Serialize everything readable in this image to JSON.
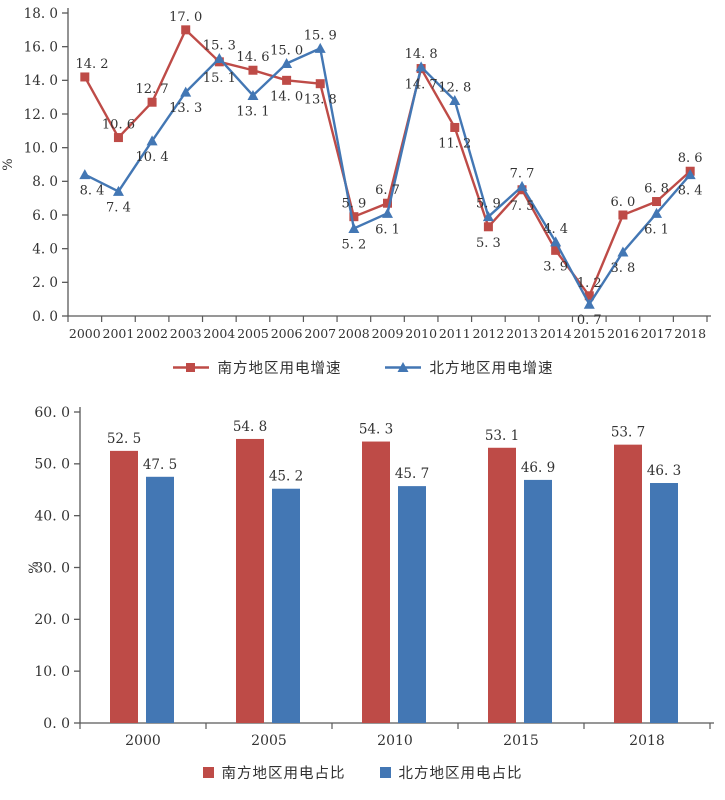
{
  "colors": {
    "south_red": "#BE4B47",
    "north_blue": "#4377B4",
    "axis_line": "#595959",
    "axis_text": "#333333",
    "data_label_text": "#3f3f3f",
    "background": "#ffffff"
  },
  "chart_data": [
    {
      "type": "line",
      "title": "",
      "ylabel": "%",
      "ylim": [
        0,
        18
      ],
      "ytick_step": 2,
      "grid": false,
      "data_labels": true,
      "legend_position": "bottom",
      "categories": [
        "2000",
        "2001",
        "2002",
        "2003",
        "2004",
        "2005",
        "2006",
        "2007",
        "2008",
        "2009",
        "2010",
        "2011",
        "2012",
        "2013",
        "2014",
        "2015",
        "2016",
        "2017",
        "2018"
      ],
      "series": [
        {
          "id": "south-growth",
          "name": "南方地区用电增速",
          "marker": "square",
          "color": "#BE4B47",
          "values": [
            14.2,
            10.6,
            12.7,
            17.0,
            15.1,
            14.6,
            14.0,
            13.8,
            5.9,
            6.7,
            14.7,
            11.2,
            5.3,
            7.5,
            3.9,
            1.2,
            6.0,
            6.8,
            8.6
          ]
        },
        {
          "id": "north-growth",
          "name": "北方地区用电增速",
          "marker": "triangle",
          "color": "#4377B4",
          "values": [
            8.4,
            7.4,
            10.4,
            13.3,
            15.3,
            13.1,
            15.0,
            15.9,
            5.2,
            6.1,
            14.8,
            12.8,
            5.9,
            7.7,
            4.4,
            0.7,
            3.8,
            6.1,
            8.4
          ]
        }
      ]
    },
    {
      "type": "bar",
      "title": "",
      "ylabel": "%",
      "ylim": [
        0,
        60
      ],
      "ytick_step": 10,
      "grid": false,
      "data_labels": true,
      "legend_position": "bottom",
      "categories": [
        "2000",
        "2005",
        "2010",
        "2015",
        "2018"
      ],
      "series": [
        {
          "id": "south-share",
          "name": "南方地区用电占比",
          "color": "#BE4B47",
          "values": [
            52.5,
            54.8,
            54.3,
            53.1,
            53.7
          ]
        },
        {
          "id": "north-share",
          "name": "北方地区用电占比",
          "color": "#4377B4",
          "values": [
            47.5,
            45.2,
            45.7,
            46.9,
            46.3
          ]
        }
      ]
    }
  ]
}
